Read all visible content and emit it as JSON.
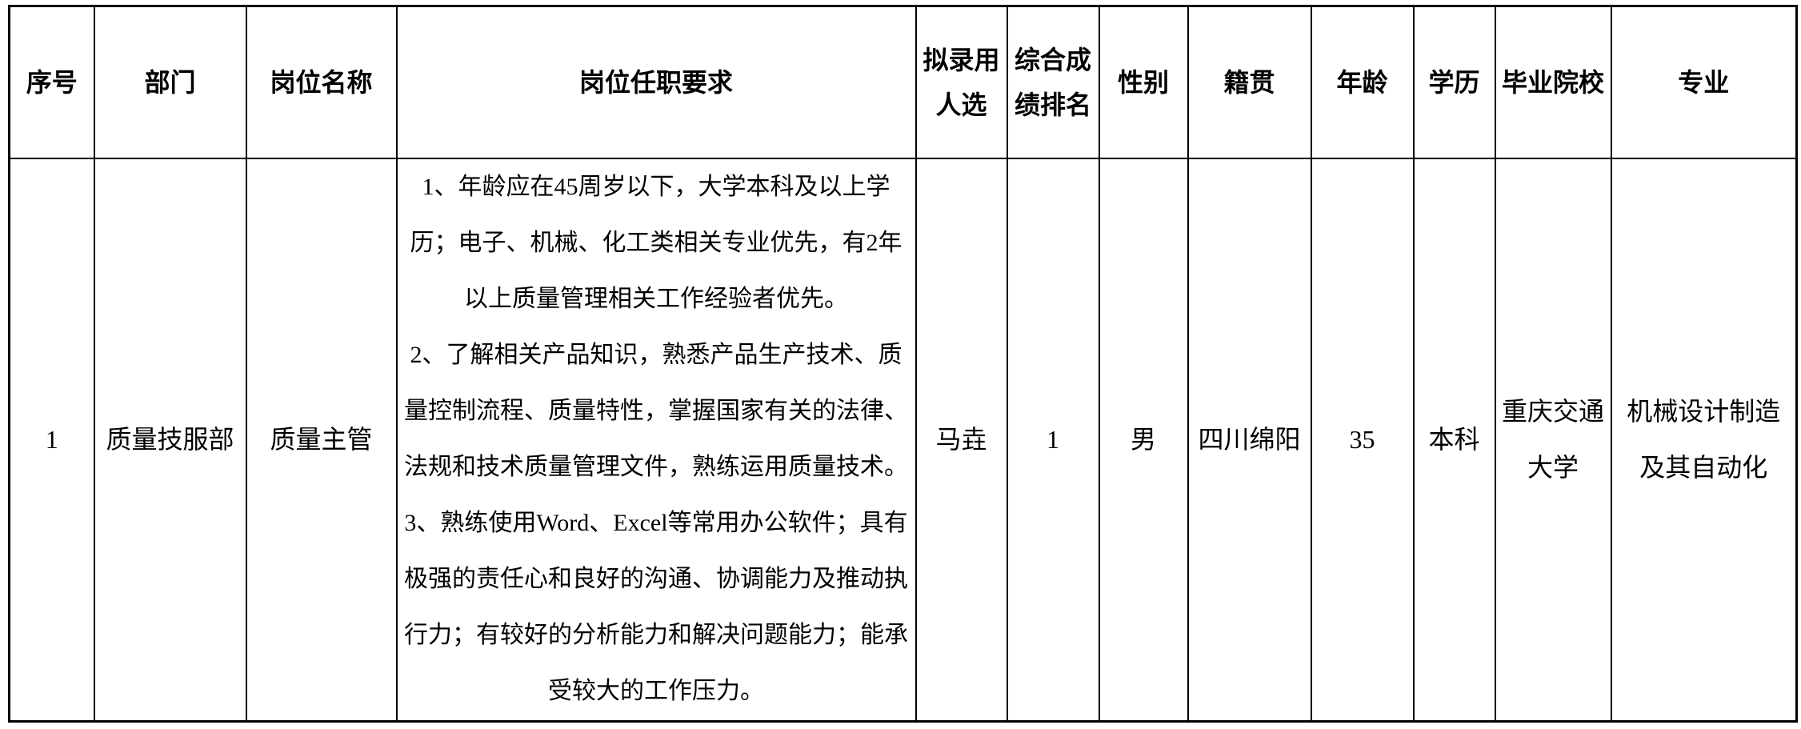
{
  "table": {
    "headers": [
      "序号",
      "部门",
      "岗位名称",
      "岗位任职要求",
      "拟录用\n人选",
      "综合成\n绩排名",
      "性别",
      "籍贯",
      "年龄",
      "学历",
      "毕业院校",
      "专业"
    ],
    "rows": [
      {
        "seq": "1",
        "department": "质量技服部",
        "position": "质量主管",
        "requirements_lines": [
          "1、年龄应在45周岁以下，大学本科及以上学",
          "历；电子、机械、化工类相关专业优先，有2年",
          "以上质量管理相关工作经验者优先。",
          "2、了解相关产品知识，熟悉产品生产技术、质",
          "量控制流程、质量特性，掌握国家有关的法律、",
          "法规和技术质量管理文件，熟练运用质量技术。",
          "3、熟练使用Word、Excel等常用办公软件；具有",
          "极强的责任心和良好的沟通、协调能力及推动执",
          "行力；有较好的分析能力和解决问题能力；能承",
          "受较大的工作压力。"
        ],
        "candidate": "马垚",
        "rank": "1",
        "gender": "男",
        "native_place": "四川绵阳",
        "age": "35",
        "education": "本科",
        "school": "重庆交通\n大学",
        "major": "机械设计制造\n及其自动化"
      }
    ]
  },
  "colors": {
    "border": "#000000",
    "text": "#000000",
    "background": "#ffffff"
  }
}
